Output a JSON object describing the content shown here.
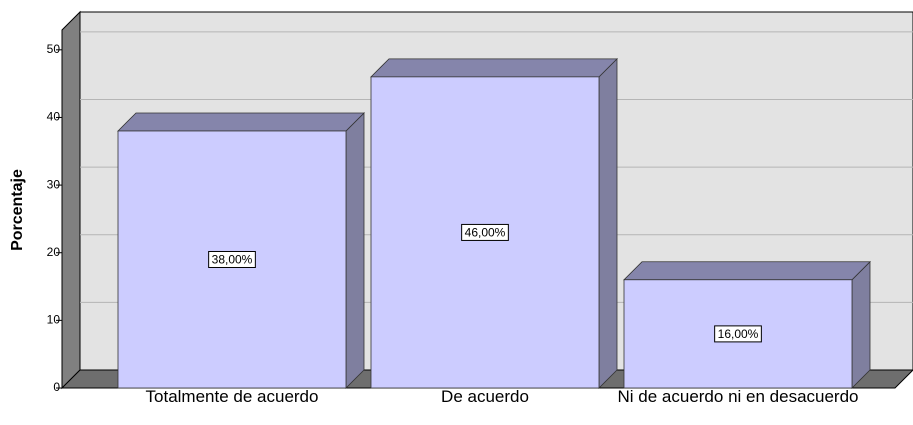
{
  "chart_data": {
    "type": "bar3d",
    "y_label": "Porcentaje",
    "categories": [
      "Totalmente de acuerdo",
      "De acuerdo",
      "Ni de acuerdo ni en desacuerdo"
    ],
    "values": [
      38,
      46,
      16
    ],
    "value_labels": [
      "38,00%",
      "46,00%",
      "16,00%"
    ],
    "color": "#ccccff",
    "ylim": [
      0,
      55
    ],
    "yticks": [
      0,
      10,
      20,
      30,
      40,
      50
    ],
    "grid": true
  }
}
